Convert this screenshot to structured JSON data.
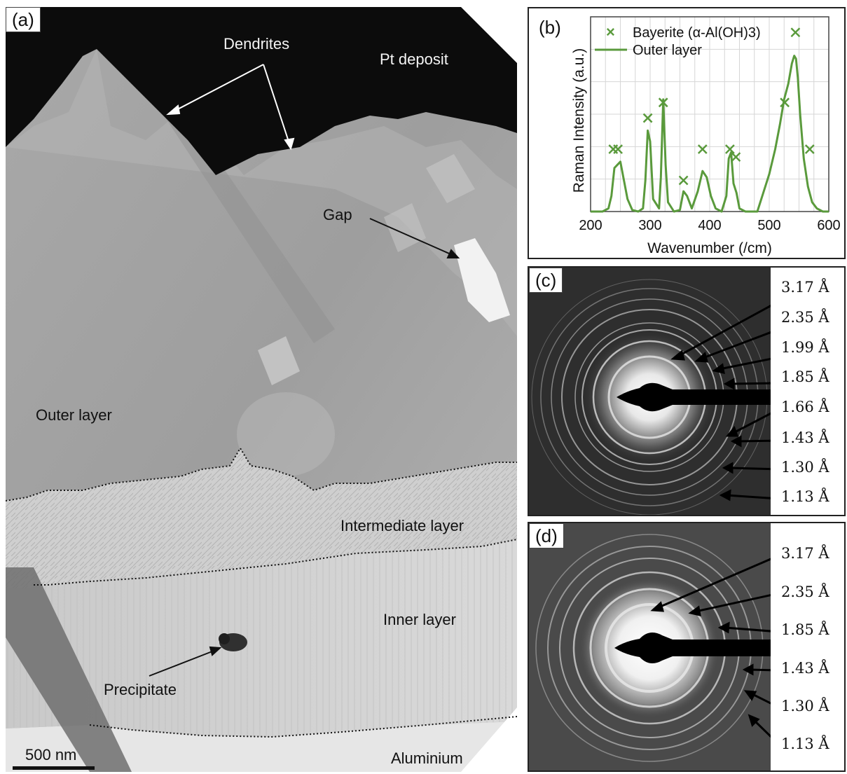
{
  "panel_a": {
    "label": "(a)",
    "annotations": {
      "dendrites": "Dendrites",
      "pt_deposit": "Pt deposit",
      "gap": "Gap",
      "outer_layer": "Outer layer",
      "intermediate_layer": "Intermediate layer",
      "inner_layer": "Inner layer",
      "precipitate": "Precipitate",
      "aluminium": "Aluminium"
    },
    "scale_bar": "500 nm"
  },
  "panel_b": {
    "label": "(b)"
  },
  "panel_c": {
    "label": "(c)",
    "d_spacings": [
      "3.17 Å",
      "2.35 Å",
      "1.99 Å",
      "1.85 Å",
      "1.66 Å",
      "1.43 Å",
      "1.30 Å",
      "1.13 Å"
    ]
  },
  "panel_d": {
    "label": "(d)",
    "d_spacings": [
      "3.17 Å",
      "2.35 Å",
      "1.85 Å",
      "1.43 Å",
      "1.30 Å",
      "1.13 Å"
    ]
  },
  "chart_data": {
    "type": "line",
    "xlabel": "Wavenumber (/cm)",
    "ylabel": "Raman Intensity (a.u.)",
    "xlim": [
      200,
      600
    ],
    "xticks": [
      200,
      300,
      400,
      500,
      600
    ],
    "grid": true,
    "legend_position": "top-left",
    "colors": {
      "series": "#5a9a3c"
    },
    "series": [
      {
        "name": "Outer layer",
        "x": [
          200,
          220,
          230,
          235,
          240,
          245,
          250,
          255,
          262,
          270,
          280,
          288,
          292,
          296,
          300,
          305,
          315,
          318,
          322,
          326,
          330,
          340,
          350,
          356,
          362,
          370,
          380,
          388,
          395,
          402,
          410,
          420,
          428,
          432,
          436,
          440,
          445,
          450,
          460,
          470,
          480,
          490,
          500,
          510,
          518,
          525,
          532,
          538,
          542,
          545,
          548,
          552,
          558,
          565,
          572,
          580,
          590,
          600
        ],
        "y": [
          0.0,
          0.0,
          0.02,
          0.1,
          0.28,
          0.3,
          0.32,
          0.22,
          0.08,
          0.01,
          0.0,
          0.02,
          0.2,
          0.52,
          0.45,
          0.08,
          0.02,
          0.22,
          0.72,
          0.3,
          0.06,
          0.0,
          0.01,
          0.13,
          0.1,
          0.02,
          0.13,
          0.26,
          0.22,
          0.1,
          0.02,
          0.0,
          0.1,
          0.34,
          0.38,
          0.18,
          0.12,
          0.02,
          0.0,
          0.0,
          0.0,
          0.12,
          0.24,
          0.4,
          0.56,
          0.72,
          0.82,
          0.95,
          1.0,
          0.98,
          0.86,
          0.62,
          0.34,
          0.16,
          0.06,
          0.02,
          0.0,
          0.0
        ]
      },
      {
        "name": "Bayerite (α-Al(OH)3)",
        "marker": "x",
        "x": [
          238,
          246,
          296,
          322,
          356,
          388,
          434,
          444,
          526,
          544,
          568
        ],
        "y": [
          0.4,
          0.4,
          0.6,
          0.7,
          0.2,
          0.4,
          0.4,
          0.35,
          0.7,
          1.15,
          0.4
        ]
      }
    ]
  }
}
